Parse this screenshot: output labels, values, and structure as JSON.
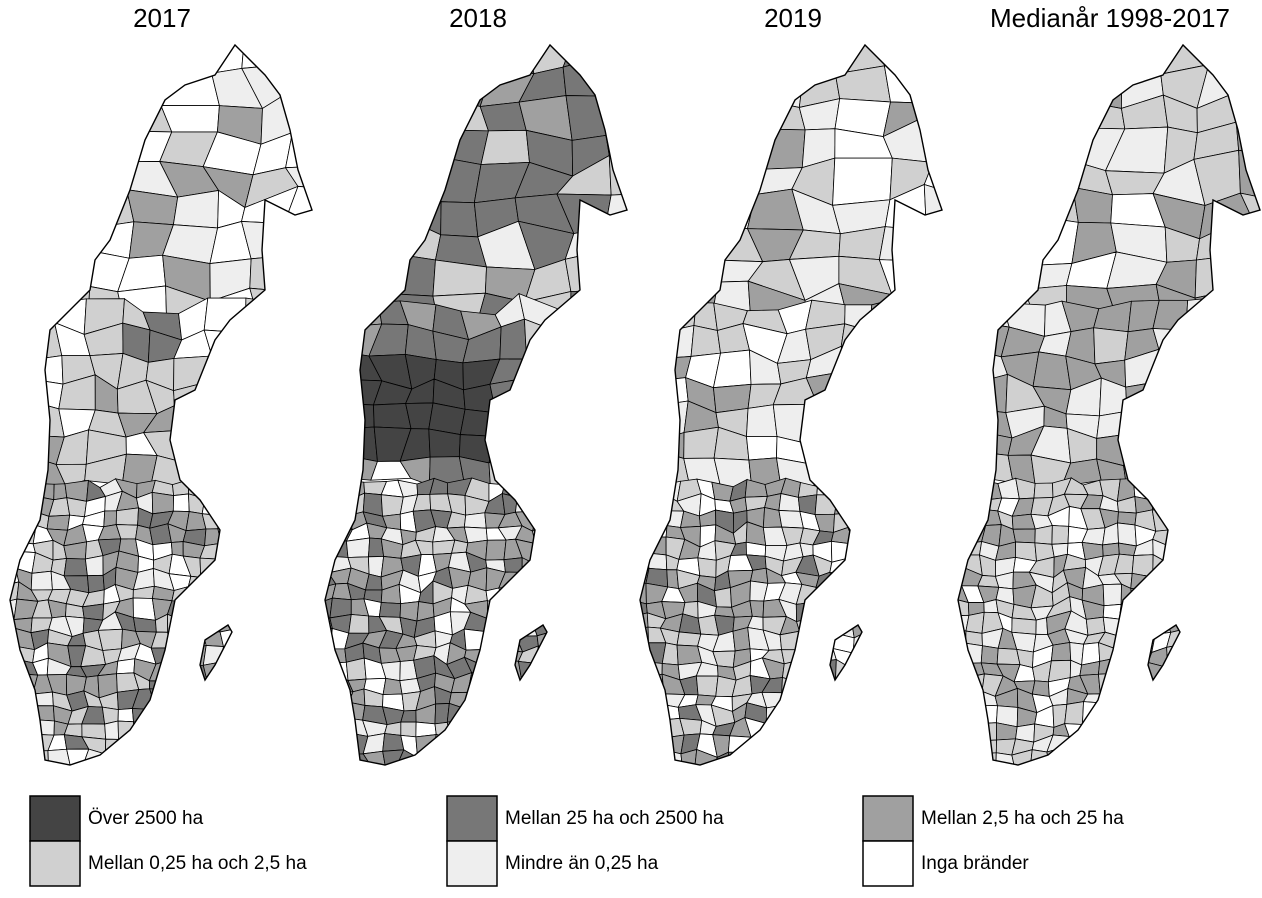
{
  "maps": [
    {
      "title": "2017"
    },
    {
      "title": "2018"
    },
    {
      "title": "2019"
    },
    {
      "title": "Medianår 1998-2017"
    }
  ],
  "legend": [
    {
      "label": "Över 2500 ha"
    },
    {
      "label": "Mellan 0,25 ha och 2,5 ha"
    },
    {
      "label": "Mellan 25 ha och 2500 ha"
    },
    {
      "label": "Mindre än 0,25 ha"
    },
    {
      "label": "Mellan 2,5 ha och 25 ha"
    },
    {
      "label": "Inga bränder"
    }
  ]
}
